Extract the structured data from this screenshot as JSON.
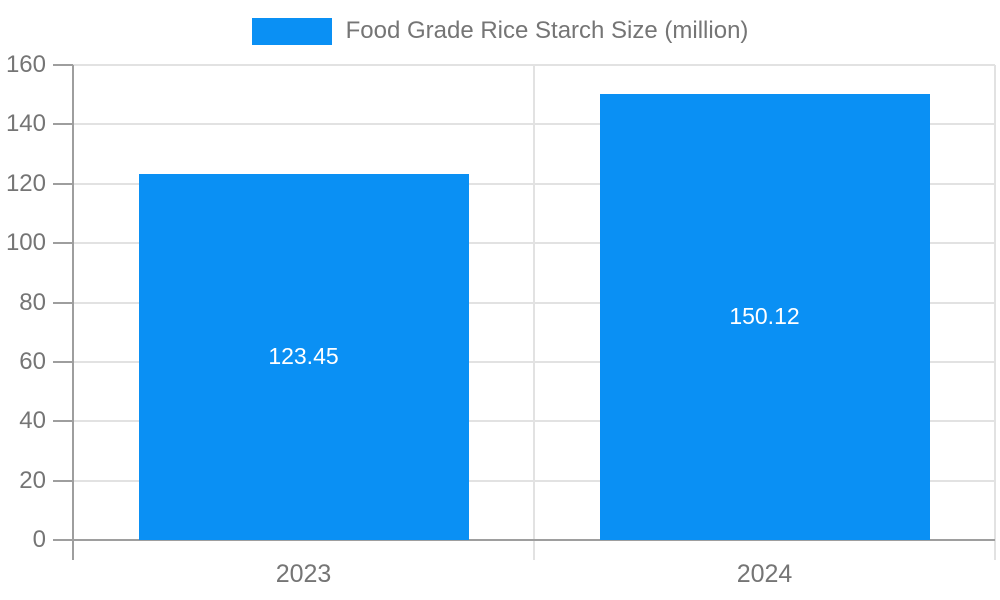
{
  "chart_data": {
    "type": "bar",
    "series_name": "Food Grade Rice Starch Size (million)",
    "categories": [
      "2023",
      "2024"
    ],
    "values": [
      123.45,
      150.12
    ],
    "value_labels": [
      "123.45",
      "150.12"
    ],
    "ylim": [
      0,
      160
    ],
    "ytick_step": 20,
    "ytick_labels": [
      "0",
      "20",
      "40",
      "60",
      "80",
      "100",
      "120",
      "140",
      "160"
    ],
    "legend_position": "top-center",
    "grid": true,
    "colors": {
      "bar": "#0a90f4",
      "axis": "#9e9e9e",
      "gridline": "#e2e2e2",
      "label": "#757575",
      "value_label": "#ffffff",
      "background": "#ffffff"
    }
  }
}
